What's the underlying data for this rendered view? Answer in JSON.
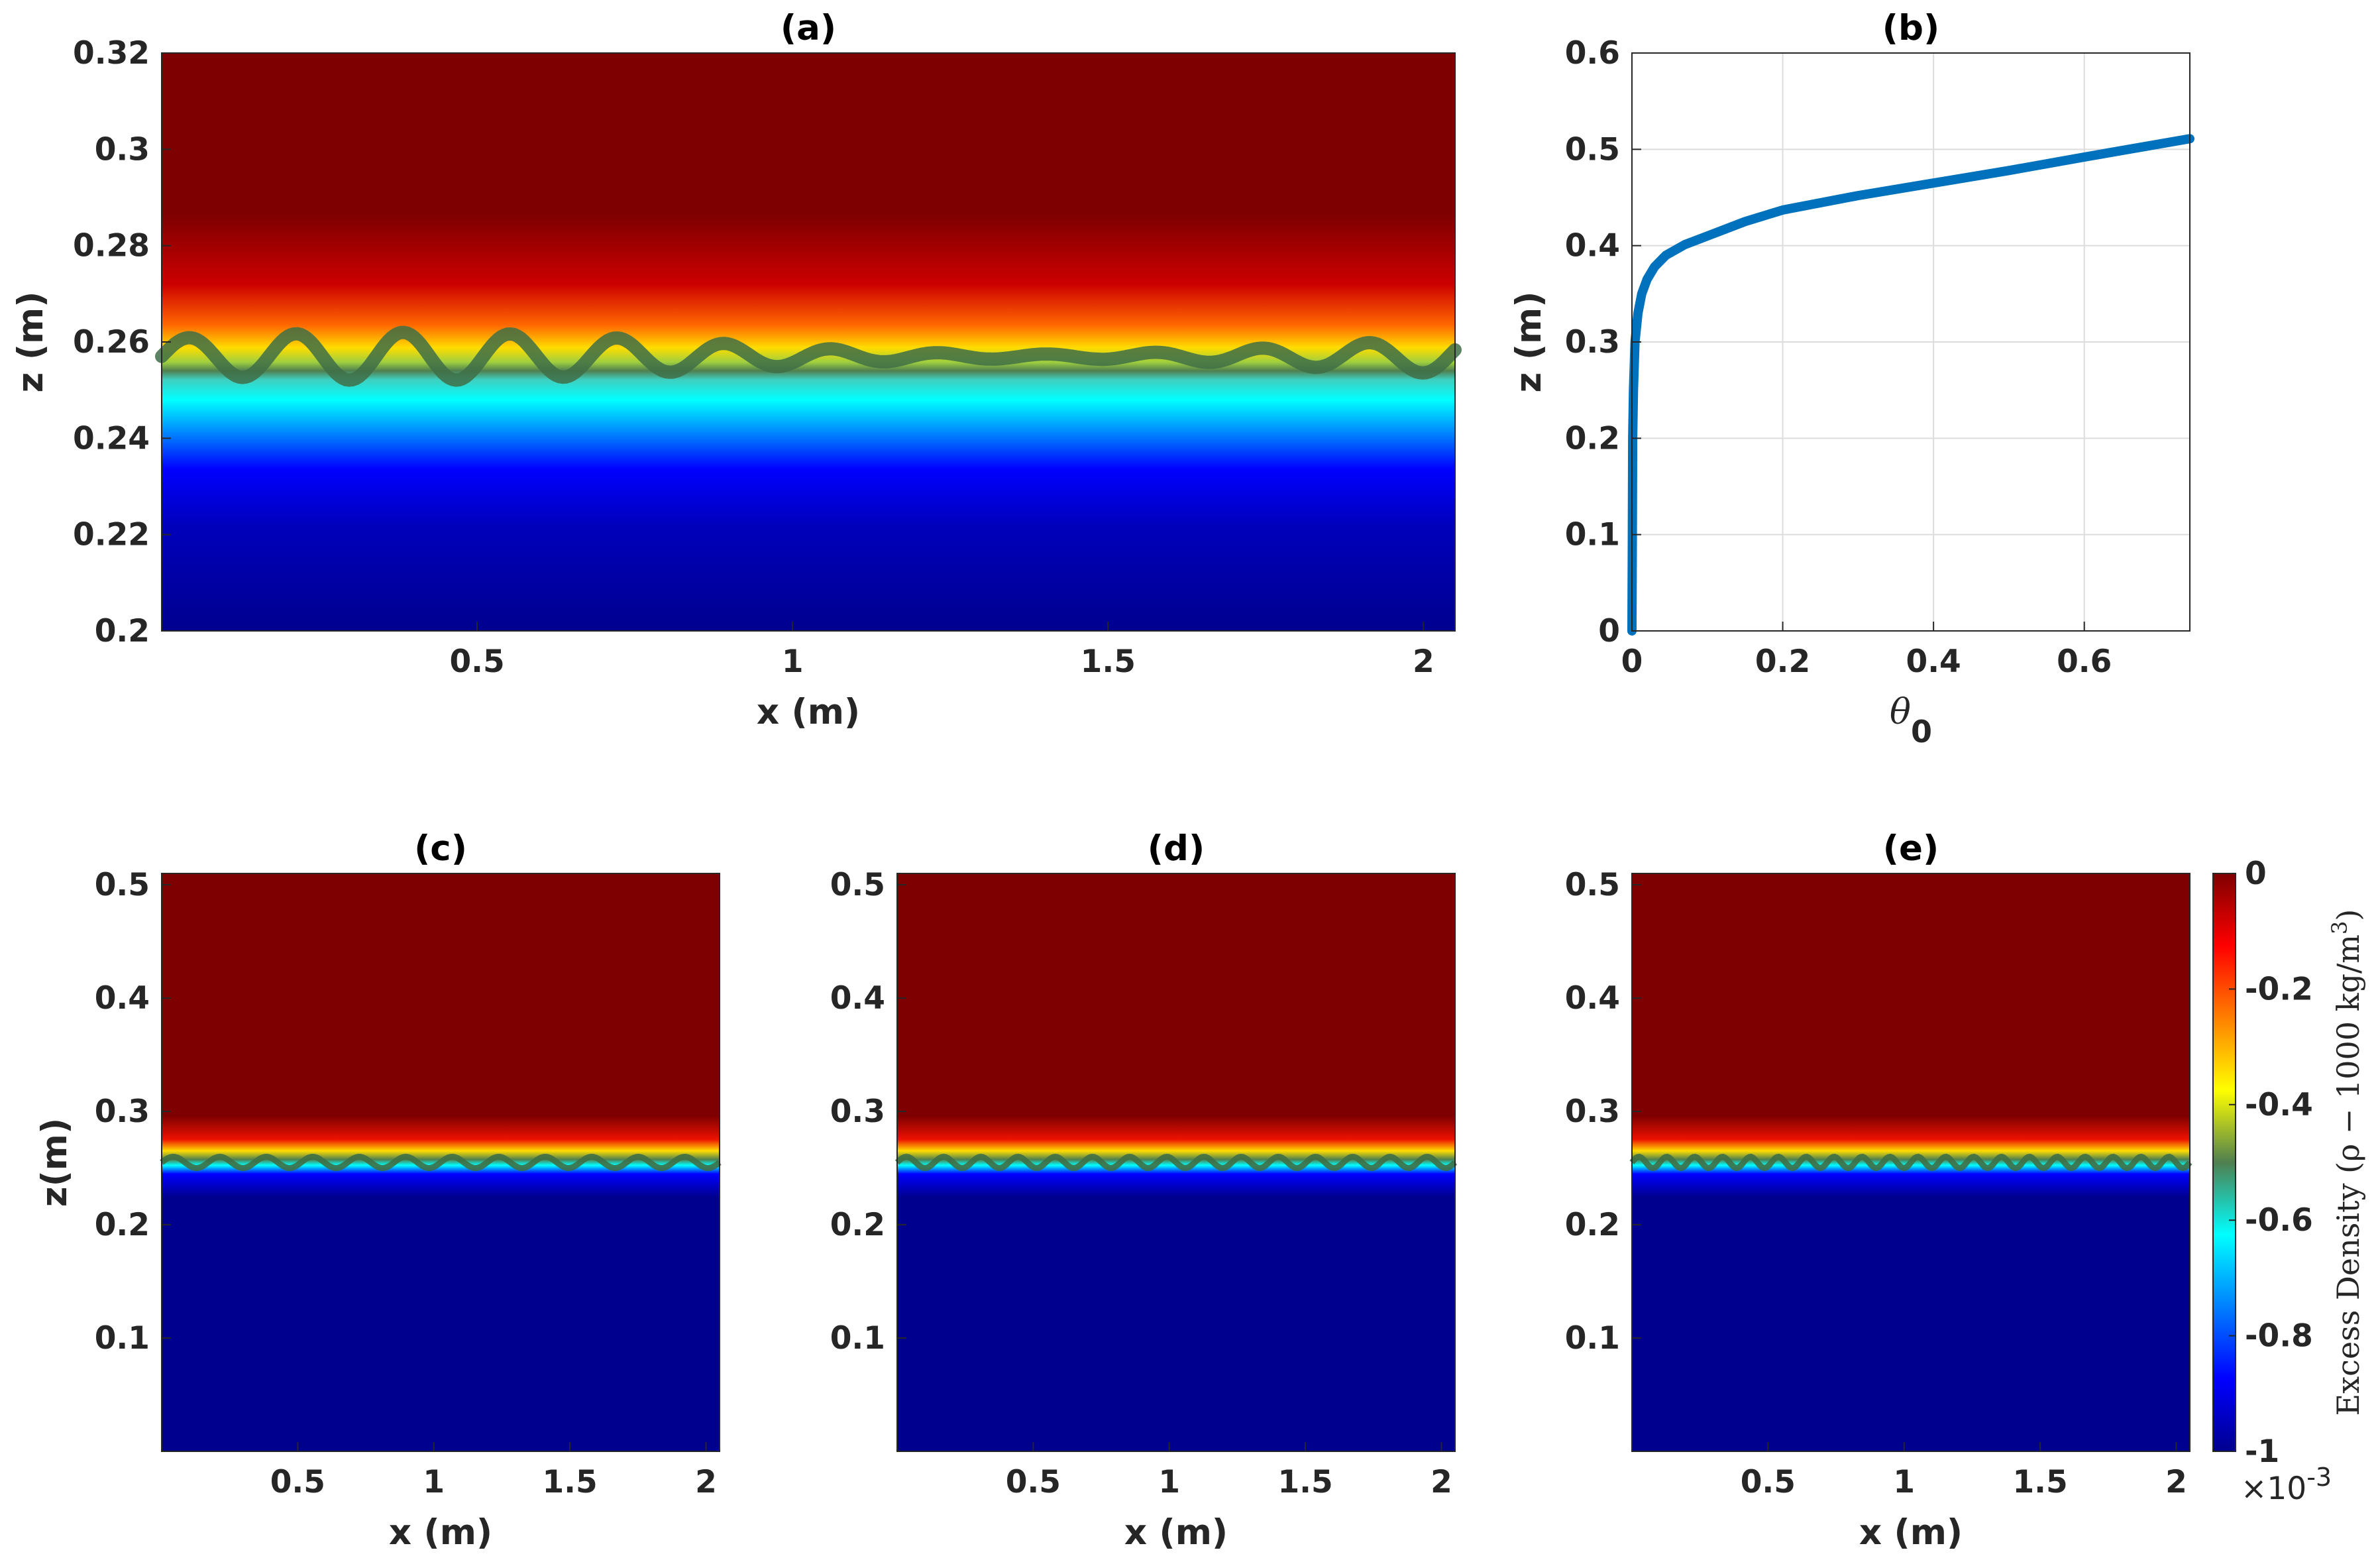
{
  "chart_data": [
    {
      "panel": "a",
      "type": "heatmap",
      "title": "(a)",
      "xlabel": "x (m)",
      "ylabel": "z (m)",
      "xlim": [
        0,
        2.05
      ],
      "ylim": [
        0.2,
        0.32
      ],
      "xticks": [
        "0.5",
        "1",
        "1.5",
        "2"
      ],
      "yticks": [
        "0.2",
        "0.22",
        "0.24",
        "0.26",
        "0.28",
        "0.3",
        "0.32"
      ],
      "interface_z": 0.257,
      "interface_amplitude": 0.005,
      "colormap": "jet"
    },
    {
      "panel": "b",
      "type": "line",
      "title": "(b)",
      "xlabel": "θ",
      "xlabel_subscript": "0",
      "ylabel": "z (m)",
      "xlim": [
        0,
        0.74
      ],
      "ylim": [
        0,
        0.6
      ],
      "grid": true,
      "xticks": [
        "0",
        "0.2",
        "0.4",
        "0.6"
      ],
      "yticks": [
        "0",
        "0.1",
        "0.2",
        "0.3",
        "0.4",
        "0.5",
        "0.6"
      ],
      "series": [
        {
          "name": "theta_0",
          "color": "#0072BD",
          "x": [
            0,
            0.0005,
            0.001,
            0.002,
            0.004,
            0.008,
            0.013,
            0.02,
            0.03,
            0.045,
            0.07,
            0.1,
            0.15,
            0.2,
            0.3,
            0.4,
            0.5,
            0.6,
            0.74
          ],
          "y": [
            0,
            0.1,
            0.2,
            0.25,
            0.3,
            0.33,
            0.35,
            0.365,
            0.378,
            0.39,
            0.401,
            0.41,
            0.425,
            0.437,
            0.452,
            0.465,
            0.478,
            0.492,
            0.511
          ]
        }
      ]
    },
    {
      "panel": "c",
      "type": "heatmap",
      "title": "(c)",
      "xlabel": "x (m)",
      "ylabel": "z(m)",
      "xlim": [
        0,
        2.05
      ],
      "ylim": [
        0,
        0.51
      ],
      "xticks": [
        "0.5",
        "1",
        "1.5",
        "2"
      ],
      "yticks": [
        "0.1",
        "0.2",
        "0.3",
        "0.4",
        "0.5"
      ],
      "interface_z": 0.255,
      "wave_count": 12,
      "colormap": "jet"
    },
    {
      "panel": "d",
      "type": "heatmap",
      "title": "(d)",
      "xlabel": "x (m)",
      "xlim": [
        0,
        2.05
      ],
      "ylim": [
        0,
        0.51
      ],
      "xticks": [
        "0.5",
        "1",
        "1.5",
        "2"
      ],
      "yticks": [
        "0.1",
        "0.2",
        "0.3",
        "0.4",
        "0.5"
      ],
      "interface_z": 0.255,
      "wave_count": 15,
      "colormap": "jet"
    },
    {
      "panel": "e",
      "type": "heatmap",
      "title": "(e)",
      "xlabel": "x (m)",
      "xlim": [
        0,
        2.05
      ],
      "ylim": [
        0,
        0.51
      ],
      "xticks": [
        "0.5",
        "1",
        "1.5",
        "2"
      ],
      "yticks": [
        "0.1",
        "0.2",
        "0.3",
        "0.4",
        "0.5"
      ],
      "interface_z": 0.255,
      "wave_count": 20,
      "colormap": "jet"
    }
  ],
  "colorbar": {
    "label": "Excess Density  (ρ − 1000 kg/m",
    "label_sup": "3",
    "label_end": ")",
    "ticks": [
      "0",
      "-0.2",
      "-0.4",
      "-0.6",
      "-0.8",
      "-1"
    ],
    "range": [
      -1,
      0
    ],
    "multiplier_base": "×10",
    "multiplier_exp": "-3"
  }
}
